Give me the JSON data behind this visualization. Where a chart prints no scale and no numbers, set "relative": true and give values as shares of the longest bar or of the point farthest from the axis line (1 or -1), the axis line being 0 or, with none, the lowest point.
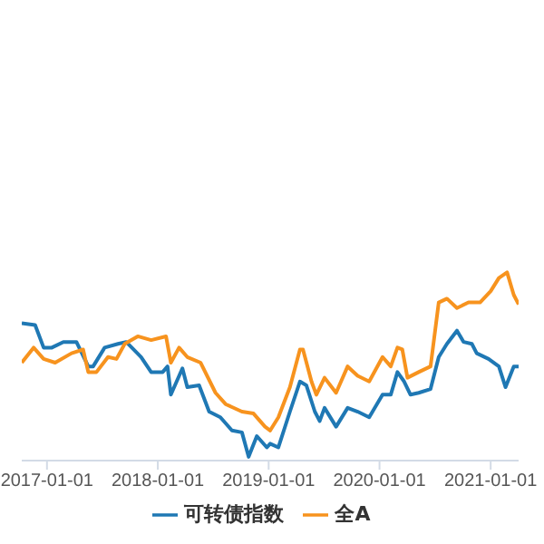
{
  "chart_data": {
    "type": "line",
    "relative": true,
    "legend": "bottom",
    "marker": "none",
    "line_style": "solid",
    "xlim": [
      "2016-10-10",
      "2021-04-03"
    ],
    "xticks": [
      "2017-01-01",
      "2018-01-01",
      "2019-01-01",
      "2020-01-01",
      "2021-01-01"
    ],
    "series": [
      {
        "name": "可转债指数",
        "color": "#1f78b4",
        "x": [
          "2016-10-10",
          "2016-11-23",
          "2016-12-21",
          "2017-01-17",
          "2017-02-24",
          "2017-04-08",
          "2017-05-17",
          "2017-06-02",
          "2017-07-10",
          "2017-08-23",
          "2017-09-19",
          "2017-11-07",
          "2017-12-10",
          "2018-01-17",
          "2018-02-02",
          "2018-02-13",
          "2018-03-23",
          "2018-04-08",
          "2018-05-17",
          "2018-06-19",
          "2018-07-26",
          "2018-09-02",
          "2018-10-05",
          "2018-10-27",
          "2018-11-23",
          "2018-12-26",
          "2019-01-06",
          "2019-02-02",
          "2019-03-12",
          "2019-04-14",
          "2019-05-05",
          "2019-06-02",
          "2019-06-18",
          "2019-07-04",
          "2019-08-11",
          "2019-09-18",
          "2019-10-21",
          "2019-11-28",
          "2020-01-11",
          "2020-02-07",
          "2020-02-29",
          "2020-03-22",
          "2020-04-12",
          "2020-05-09",
          "2020-06-17",
          "2020-07-14",
          "2020-08-10",
          "2020-09-12",
          "2020-10-04",
          "2020-10-31",
          "2020-11-16",
          "2020-12-25",
          "2021-01-28",
          "2021-02-19",
          "2021-03-18",
          "2021-04-03"
        ],
        "values": [
          0.73,
          0.72,
          0.6,
          0.6,
          0.63,
          0.63,
          0.5,
          0.5,
          0.6,
          0.62,
          0.63,
          0.55,
          0.47,
          0.47,
          0.5,
          0.35,
          0.49,
          0.39,
          0.4,
          0.26,
          0.23,
          0.16,
          0.15,
          0.02,
          0.13,
          0.07,
          0.09,
          0.07,
          0.26,
          0.42,
          0.4,
          0.26,
          0.21,
          0.28,
          0.18,
          0.28,
          0.26,
          0.23,
          0.35,
          0.35,
          0.47,
          0.42,
          0.35,
          0.36,
          0.38,
          0.55,
          0.62,
          0.69,
          0.63,
          0.62,
          0.57,
          0.54,
          0.5,
          0.39,
          0.5,
          0.5
        ]
      },
      {
        "name": "全A",
        "color": "#f7931e",
        "x": [
          "2016-10-10",
          "2016-11-18",
          "2016-12-21",
          "2017-01-28",
          "2017-03-23",
          "2017-04-30",
          "2017-05-17",
          "2017-06-13",
          "2017-07-21",
          "2017-08-18",
          "2017-09-14",
          "2017-10-27",
          "2017-12-10",
          "2018-01-28",
          "2018-02-13",
          "2018-03-12",
          "2018-04-08",
          "2018-05-22",
          "2018-07-10",
          "2018-08-12",
          "2018-10-05",
          "2018-11-12",
          "2018-12-20",
          "2019-01-06",
          "2019-02-02",
          "2019-03-12",
          "2019-04-14",
          "2019-04-24",
          "2019-05-22",
          "2019-06-07",
          "2019-07-04",
          "2019-08-11",
          "2019-09-18",
          "2019-10-21",
          "2019-11-28",
          "2020-01-11",
          "2020-02-07",
          "2020-02-29",
          "2020-03-16",
          "2020-04-02",
          "2020-05-09",
          "2020-06-17",
          "2020-07-14",
          "2020-08-10",
          "2020-09-12",
          "2020-10-20",
          "2020-11-27",
          "2021-01-01",
          "2021-01-28",
          "2021-02-24",
          "2021-03-18",
          "2021-04-03"
        ],
        "values": [
          0.52,
          0.6,
          0.54,
          0.52,
          0.57,
          0.59,
          0.47,
          0.47,
          0.55,
          0.54,
          0.62,
          0.66,
          0.64,
          0.66,
          0.52,
          0.6,
          0.55,
          0.52,
          0.36,
          0.3,
          0.26,
          0.25,
          0.18,
          0.16,
          0.23,
          0.39,
          0.59,
          0.59,
          0.42,
          0.35,
          0.44,
          0.36,
          0.5,
          0.45,
          0.42,
          0.55,
          0.5,
          0.6,
          0.59,
          0.44,
          0.47,
          0.5,
          0.84,
          0.86,
          0.81,
          0.84,
          0.84,
          0.9,
          0.97,
          1,
          0.88,
          0.83
        ]
      }
    ]
  }
}
